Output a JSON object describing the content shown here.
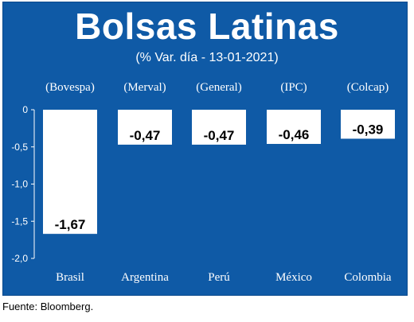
{
  "title": "Bolsas Latinas",
  "subtitle": "(% Var. día - 13-01-2021)",
  "source": "Fuente: Bloomberg.",
  "colors": {
    "background": "#0f5aa6",
    "bar": "#ffffff",
    "text": "#ffffff",
    "value_text": "#000000"
  },
  "chart_data": {
    "type": "bar",
    "categories": [
      "Brasil",
      "Argentina",
      "Perú",
      "México",
      "Colombia"
    ],
    "index_labels": [
      "(Bovespa)",
      "(Merval)",
      "(General)",
      "(IPC)",
      "(Colcap)"
    ],
    "values": [
      -1.67,
      -0.47,
      -0.47,
      -0.46,
      -0.39
    ],
    "value_labels": [
      "-1,67",
      "-0,47",
      "-0,47",
      "-0,46",
      "-0,39"
    ],
    "yticks": [
      "0",
      "-0,5",
      "-1,0",
      "-1,5",
      "-2,0"
    ],
    "ytick_values": [
      0,
      -0.5,
      -1.0,
      -1.5,
      -2.0
    ],
    "ylim": [
      -2.0,
      0
    ],
    "grid": false
  }
}
